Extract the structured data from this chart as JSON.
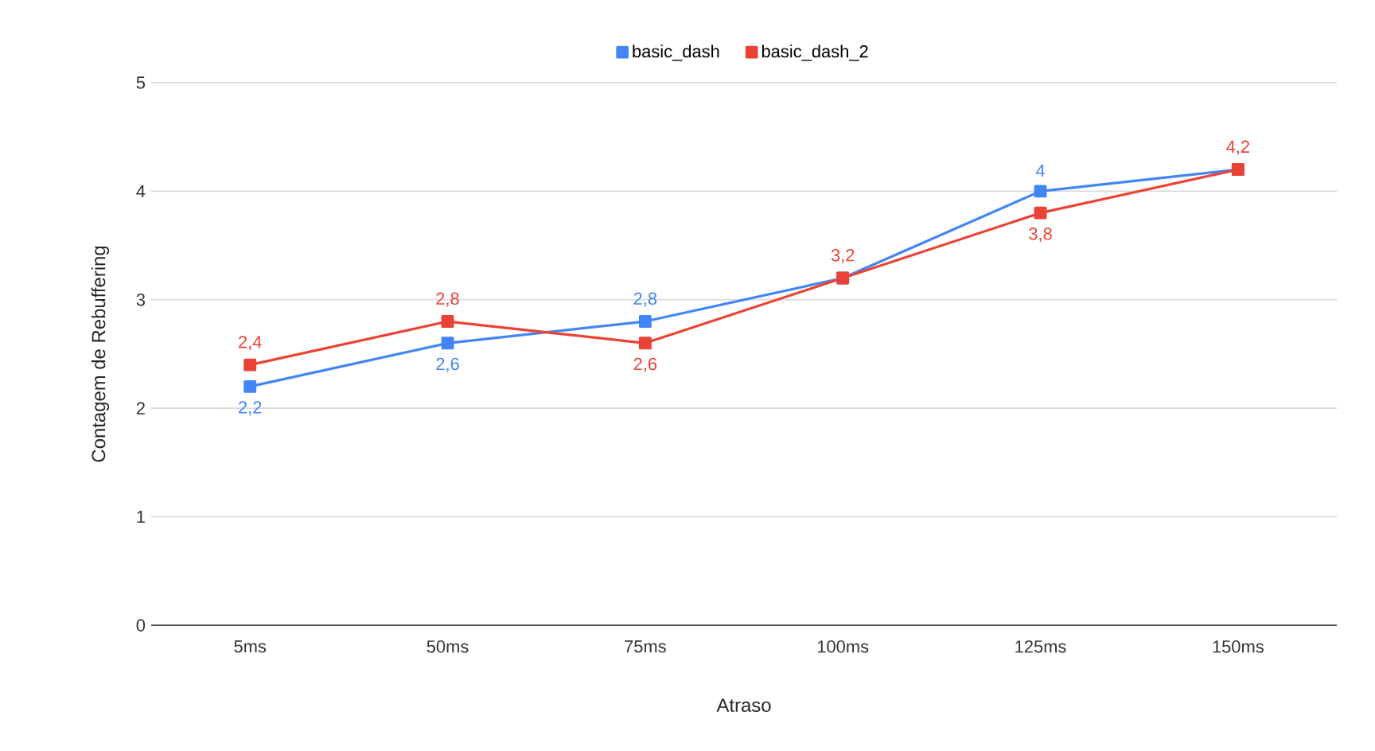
{
  "chart_data": {
    "type": "line",
    "xlabel": "Atraso",
    "ylabel": "Contagem de Rebuffering",
    "categories": [
      "5ms",
      "50ms",
      "75ms",
      "100ms",
      "125ms",
      "150ms"
    ],
    "series": [
      {
        "name": "basic_dash",
        "color": "#4285f4",
        "values": [
          2.2,
          2.6,
          2.8,
          3.2,
          4,
          4.2
        ],
        "value_labels": [
          "2,2",
          "2,6",
          "2,8",
          null,
          "4",
          null
        ]
      },
      {
        "name": "basic_dash_2",
        "color": "#ea4335",
        "values": [
          2.4,
          2.8,
          2.6,
          3.2,
          3.8,
          4.2
        ],
        "value_labels": [
          "2,4",
          "2,8",
          "2,6",
          "3,2",
          "3,8",
          "4,2"
        ]
      }
    ],
    "ylim": [
      0,
      5
    ],
    "yticks": [
      0,
      1,
      2,
      3,
      4,
      5
    ],
    "grid": "y",
    "legend": "top",
    "marker": "square",
    "line_style": "solid"
  }
}
